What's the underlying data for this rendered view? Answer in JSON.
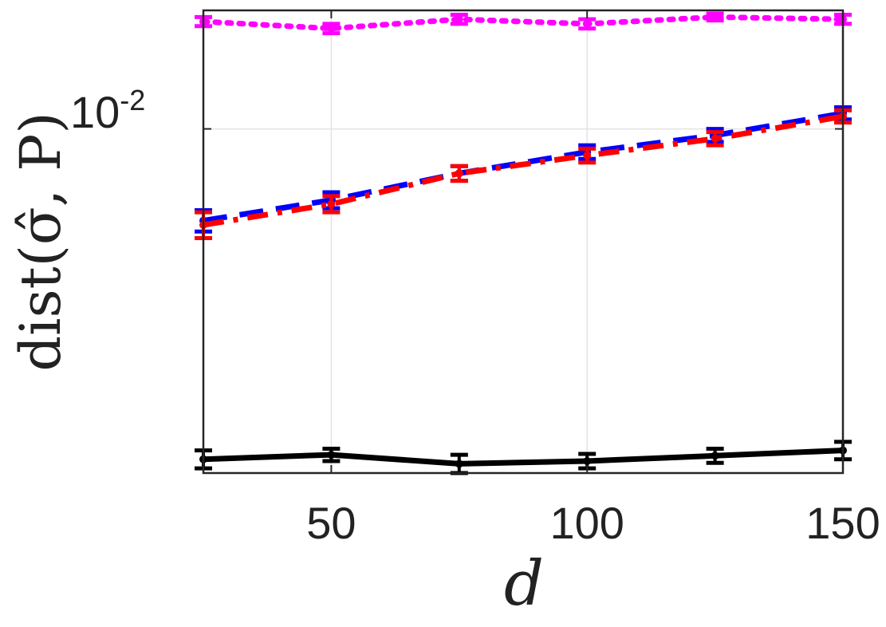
{
  "chart_data": {
    "type": "line",
    "title": "",
    "xlabel": "d",
    "ylabel": "dist(σ̂, P)",
    "yscale": "log",
    "xlim": [
      25,
      150
    ],
    "ylim": [
      0.0034,
      0.0145
    ],
    "grid": true,
    "x_ticks": [
      50,
      100,
      150
    ],
    "x_tick_labels": [
      "50",
      "100",
      "150"
    ],
    "y_tick_label": {
      "base": "10",
      "exponent": "-2",
      "value": 0.01
    },
    "x": [
      25,
      50,
      75,
      100,
      125,
      150
    ],
    "series": [
      {
        "name": "magenta-dotted",
        "color": "#ff00ff",
        "line_style": "dotted",
        "values": [
          0.014,
          0.0137,
          0.0141,
          0.0139,
          0.0142,
          0.0141
        ],
        "errors": [
          0.0002,
          0.0002,
          0.0002,
          0.0002,
          0.00015,
          0.0002
        ]
      },
      {
        "name": "blue-dashed",
        "color": "#0000ff",
        "line_style": "dashed",
        "values": [
          0.0075,
          0.008,
          0.0087,
          0.0093,
          0.0098,
          0.0105
        ],
        "errors": [
          0.00025,
          0.0002,
          0.0002,
          0.0002,
          0.0002,
          0.0002
        ]
      },
      {
        "name": "red-dashdot",
        "color": "#ff0000",
        "line_style": "dashdot",
        "values": [
          0.0074,
          0.0079,
          0.0087,
          0.0092,
          0.0097,
          0.0104
        ],
        "errors": [
          0.0003,
          0.0002,
          0.0002,
          0.0002,
          0.0002,
          0.0002
        ]
      },
      {
        "name": "black-solid",
        "color": "#000000",
        "line_style": "solid",
        "values": [
          0.00355,
          0.0036,
          0.0035,
          0.00353,
          0.00359,
          0.00365
        ],
        "errors": [
          0.0001,
          7e-05,
          0.0001,
          8e-05,
          8e-05,
          0.0001
        ]
      }
    ]
  }
}
